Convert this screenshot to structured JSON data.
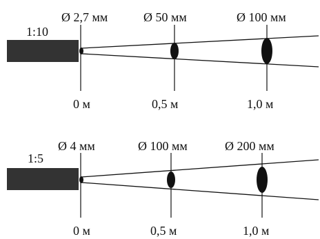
{
  "colors": {
    "ink": "#111111",
    "device": "#333333"
  },
  "diagrams": [
    {
      "ratio": "1:10",
      "spot_labels": [
        "Ø 2,7 мм",
        "Ø  50 мм",
        "Ø 100 мм"
      ],
      "distance_labels": [
        "0 м",
        "0,5 м",
        "1,0 м"
      ]
    },
    {
      "ratio": "1:5",
      "spot_labels": [
        "Ø 4 мм",
        "Ø 100 мм",
        "Ø 200 мм"
      ],
      "distance_labels": [
        "0 м",
        "0,5 м",
        "1,0 м"
      ]
    }
  ]
}
